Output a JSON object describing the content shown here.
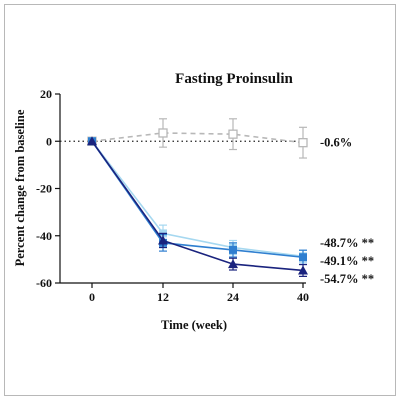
{
  "chart_data": {
    "type": "line",
    "title": "Fasting Proinsulin",
    "xlabel": "Time (week)",
    "ylabel": "Percent change from baseline",
    "x_ticks": [
      0,
      12,
      24,
      40
    ],
    "y_ticks": [
      20,
      0,
      -20,
      -40,
      -60
    ],
    "ylim": [
      -60,
      20
    ],
    "reference_line": {
      "y": 0,
      "style": "dotted"
    },
    "series": [
      {
        "color": "#b8b8b8",
        "line_style": "dashed",
        "marker": "open-square",
        "points": [
          {
            "x": 0,
            "y": 0,
            "err": 0
          },
          {
            "x": 12,
            "y": 3.5,
            "err": 6
          },
          {
            "x": 24,
            "y": 3,
            "err": 6.5
          },
          {
            "x": 40,
            "y": -0.6,
            "err": 6.5
          }
        ],
        "end_label": "-0.6%"
      },
      {
        "color": "#a6d8f0",
        "line_style": "solid",
        "marker": "square",
        "points": [
          {
            "x": 0,
            "y": 0,
            "err": 0
          },
          {
            "x": 12,
            "y": -39,
            "err": 3.5
          },
          {
            "x": 24,
            "y": -45,
            "err": 3
          },
          {
            "x": 40,
            "y": -48.7,
            "err": 2.5
          }
        ],
        "end_label": "-48.7% **"
      },
      {
        "color": "#2f7fd0",
        "line_style": "solid",
        "marker": "square",
        "points": [
          {
            "x": 0,
            "y": 0,
            "err": 0
          },
          {
            "x": 12,
            "y": -43,
            "err": 3.5
          },
          {
            "x": 24,
            "y": -46,
            "err": 3
          },
          {
            "x": 40,
            "y": -49.1,
            "err": 3
          }
        ],
        "end_label": "-49.1% **"
      },
      {
        "color": "#1a237e",
        "line_style": "solid",
        "marker": "triangle",
        "points": [
          {
            "x": 0,
            "y": 0,
            "err": 0
          },
          {
            "x": 12,
            "y": -42,
            "err": 3
          },
          {
            "x": 24,
            "y": -52,
            "err": 2.5
          },
          {
            "x": 40,
            "y": -54.7,
            "err": 2.5
          }
        ],
        "end_label": "-54.7% **"
      }
    ]
  }
}
